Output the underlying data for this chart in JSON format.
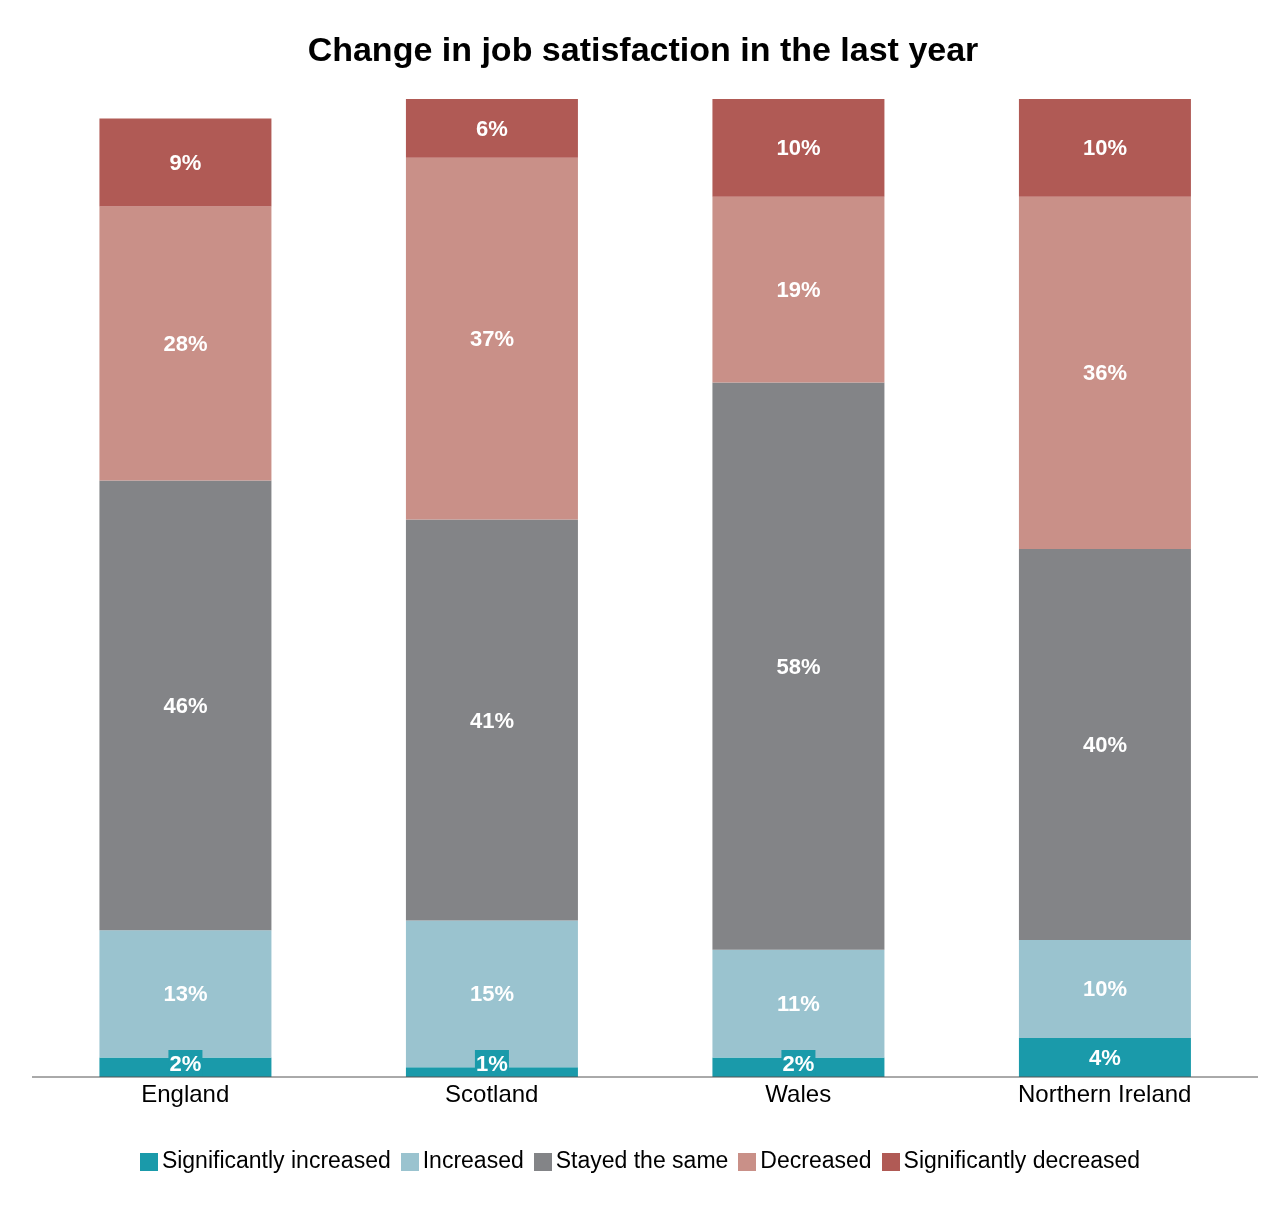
{
  "chart_data": {
    "type": "bar",
    "title": "Change in job satisfaction in the last year",
    "categories": [
      "England",
      "Scotland",
      "Wales",
      "Northern Ireland"
    ],
    "stacked": true,
    "ylim": [
      0,
      100
    ],
    "tick_labels": "x",
    "legend": "bottom",
    "grid": false,
    "series": [
      {
        "name": "Significantly increased",
        "color": "#1a9aaa",
        "values": [
          2,
          1,
          2,
          4
        ],
        "value_labels": [
          "2%",
          "1%",
          "2%",
          "4%"
        ]
      },
      {
        "name": "Increased",
        "color": "#9ac3cf",
        "values": [
          13,
          15,
          11,
          10
        ],
        "value_labels": [
          "13%",
          "15%",
          "11%",
          "10%"
        ]
      },
      {
        "name": "Stayed the same",
        "color": "#838487",
        "values": [
          46,
          41,
          58,
          40
        ],
        "value_labels": [
          "46%",
          "41%",
          "58%",
          "40%"
        ]
      },
      {
        "name": "Decreased",
        "color": "#c99088",
        "values": [
          28,
          37,
          19,
          36
        ],
        "value_labels": [
          "28%",
          "37%",
          "19%",
          "36%"
        ]
      },
      {
        "name": "Significantly decreased",
        "color": "#b05a55",
        "values": [
          9,
          6,
          10,
          10
        ],
        "value_labels": [
          "9%",
          "6%",
          "10%",
          "10%"
        ]
      }
    ]
  }
}
